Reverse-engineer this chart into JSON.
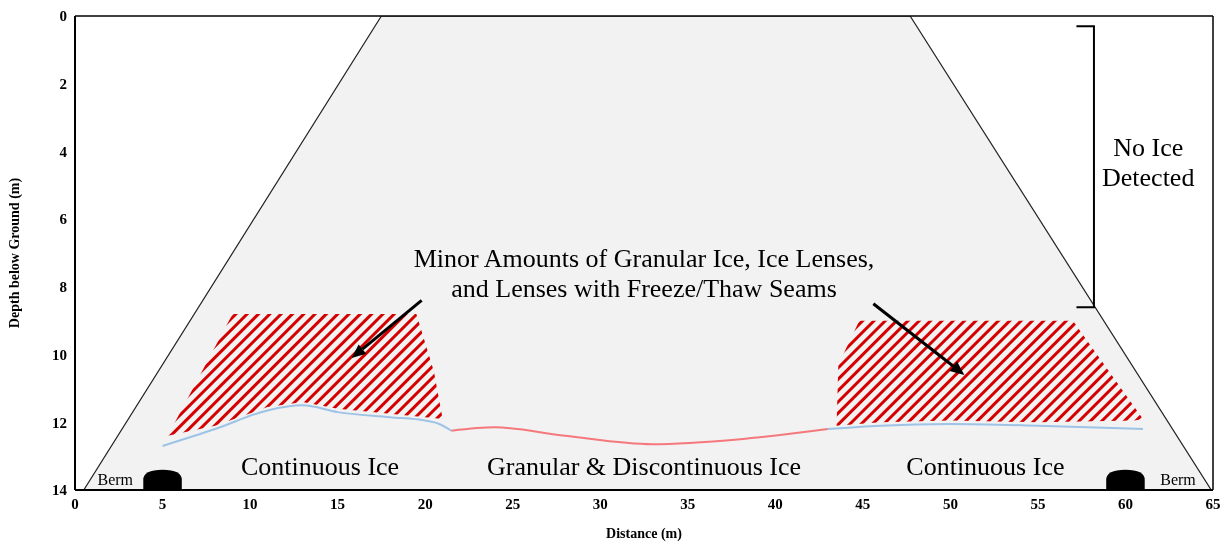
{
  "chart_data": {
    "type": "line",
    "xlabel": "Distance (m)",
    "ylabel": "Depth below Ground (m)",
    "xlim": [
      0,
      65
    ],
    "xticks": [
      0,
      5,
      10,
      15,
      20,
      25,
      30,
      35,
      40,
      45,
      50,
      55,
      60,
      65
    ],
    "ylim": [
      14,
      0
    ],
    "yticks": [
      0,
      2,
      4,
      6,
      8,
      10,
      12,
      14
    ],
    "grid": false,
    "legend": false,
    "marker": "none",
    "line_style": "solid",
    "series": [
      {
        "type": "area",
        "color": "#f2f2f2",
        "x": [
          0.5,
          17.5,
          47.7,
          64.9,
          0.5
        ],
        "values": [
          14,
          0,
          0,
          14,
          14
        ]
      },
      {
        "type": "area",
        "color": "#d40000",
        "x": [
          5.3,
          9,
          19.5,
          20.5,
          21,
          20,
          18,
          15,
          13,
          11,
          8,
          5.3
        ],
        "values": [
          12.4,
          8.8,
          8.8,
          10.5,
          11.9,
          11.85,
          11.75,
          11.6,
          11.4,
          11.55,
          12.1,
          12.4
        ]
      },
      {
        "type": "area",
        "color": "#d40000",
        "x": [
          43.5,
          43.6,
          44.8,
          57,
          61,
          60.5,
          55,
          50,
          46,
          43.5
        ],
        "values": [
          12.1,
          10.3,
          9.0,
          9.0,
          11.9,
          11.95,
          12.0,
          11.95,
          12.0,
          12.1
        ]
      },
      {
        "color": "#9dc3e6",
        "x": [
          5,
          8,
          11,
          13,
          15,
          18,
          20,
          20.8,
          21.5
        ],
        "values": [
          12.7,
          12.2,
          11.65,
          11.5,
          11.7,
          11.85,
          11.95,
          12.05,
          12.25
        ]
      },
      {
        "color": "#f4787c",
        "x": [
          21.5,
          24,
          28,
          33,
          38,
          43
        ],
        "values": [
          12.25,
          12.15,
          12.4,
          12.65,
          12.5,
          12.2
        ]
      },
      {
        "color": "#9dc3e6",
        "x": [
          43,
          46,
          50,
          55,
          61
        ],
        "values": [
          12.2,
          12.1,
          12.05,
          12.1,
          12.2
        ]
      }
    ],
    "annotations": [
      "No Ice\nDetected",
      "Minor Amounts of Granular Ice, Ice Lenses,\nand Lenses with Freeze/Thaw Seams",
      "Continuous Ice",
      "Granular & Discontinuous Ice",
      "Continuous Ice",
      "Berm",
      "Berm"
    ]
  }
}
